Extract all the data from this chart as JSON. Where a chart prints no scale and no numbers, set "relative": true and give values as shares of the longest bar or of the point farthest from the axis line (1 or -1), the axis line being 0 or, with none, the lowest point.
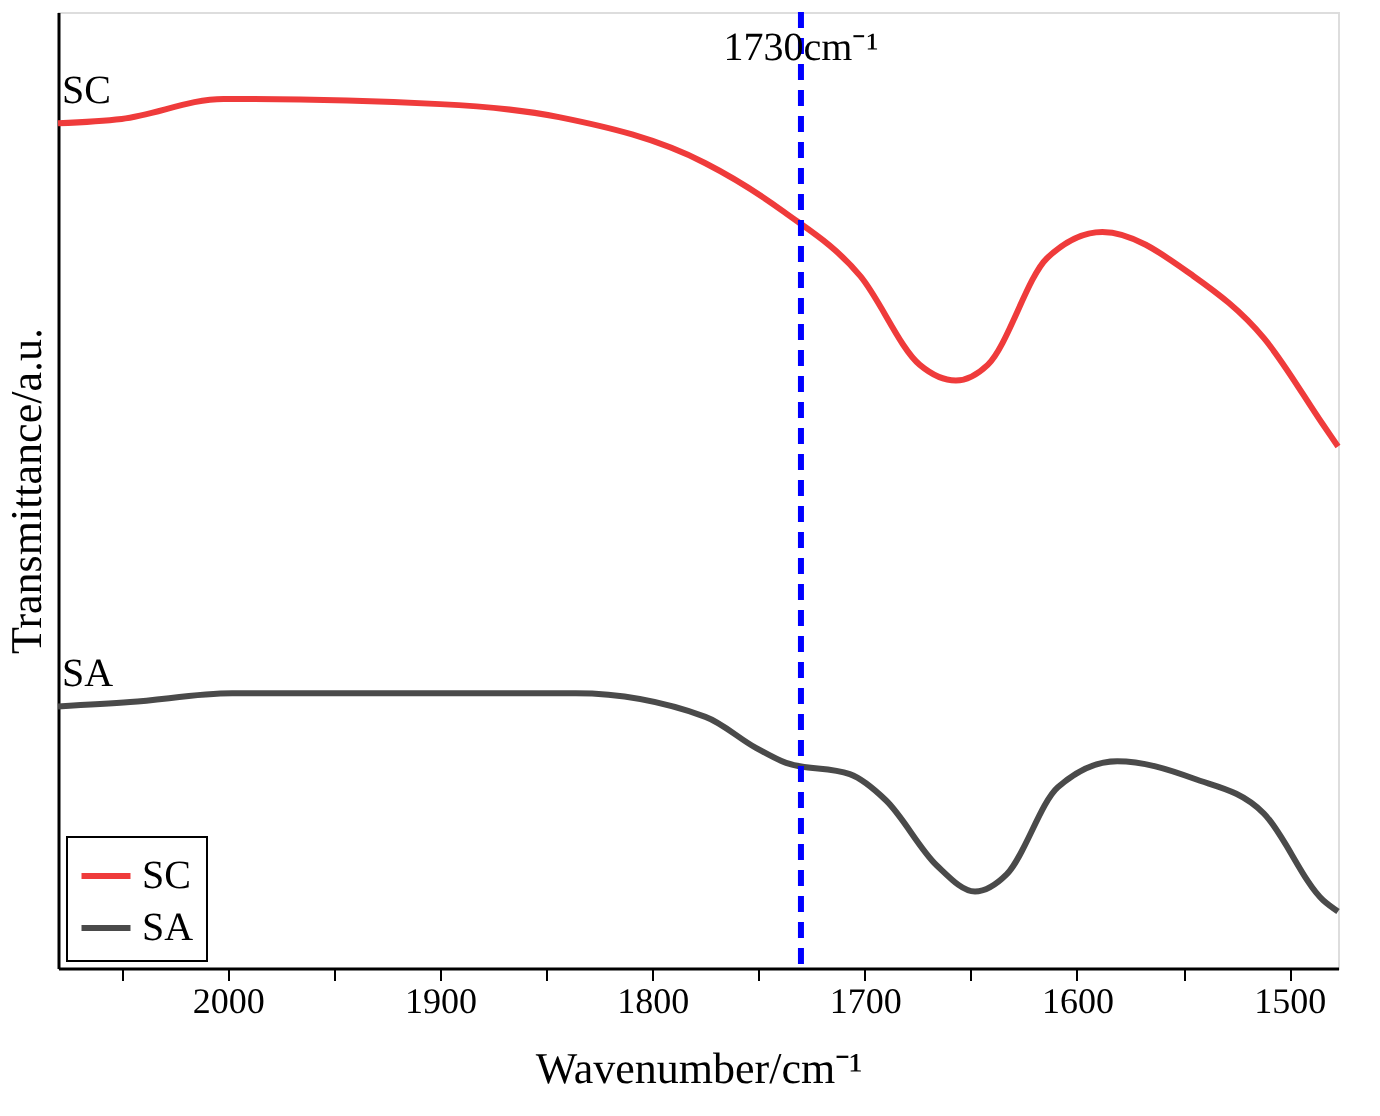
{
  "chart_data": {
    "type": "line",
    "relative": true,
    "xlabel": "Wavenumber/cm⁻¹",
    "ylabel": "Transmittance/a.u.",
    "xlim": [
      2080,
      1477
    ],
    "xticks": [
      {
        "value": 2050,
        "label": null
      },
      2000,
      {
        "value": 1950,
        "label": null
      },
      1900,
      {
        "value": 1850,
        "label": null
      },
      1800,
      {
        "value": 1750,
        "label": null
      },
      1700,
      {
        "value": 1650,
        "label": null
      },
      1600,
      {
        "value": 1550,
        "label": null
      },
      1500
    ],
    "tick_labels": "x",
    "grid": false,
    "legend": "bottom left",
    "line_style": "solid",
    "marker": "none",
    "series": [
      {
        "name": "SC",
        "color": "#ef3b3b",
        "x": [
          2080,
          2050,
          2002,
          1900,
          1844,
          1775,
          1738,
          1702,
          1674,
          1657,
          1642,
          1614,
          1588,
          1545,
          1512,
          1484,
          1477
        ],
        "values": [
          0.972,
          0.977,
          1.0,
          0.994,
          0.979,
          0.926,
          0.87,
          0.796,
          0.694,
          0.676,
          0.694,
          0.817,
          0.847,
          0.796,
          0.725,
          0.625,
          0.6
        ]
      },
      {
        "name": "SA",
        "color": "#4a4a4a",
        "x": [
          2080,
          2046,
          1998,
          1836,
          1775,
          1751,
          1737,
          1707,
          1690,
          1666,
          1648,
          1633,
          1609,
          1581,
          1545,
          1512,
          1484,
          1477
        ],
        "values": [
          0.301,
          0.306,
          0.316,
          0.316,
          0.289,
          0.253,
          0.236,
          0.223,
          0.193,
          0.118,
          0.088,
          0.108,
          0.208,
          0.238,
          0.218,
          0.178,
          0.078,
          0.065
        ]
      }
    ],
    "ref_lines": [
      {
        "axis": "x",
        "value": 1730,
        "label": "1730cm⁻¹",
        "color": "#0000ff",
        "line_style": "dashed"
      }
    ]
  }
}
